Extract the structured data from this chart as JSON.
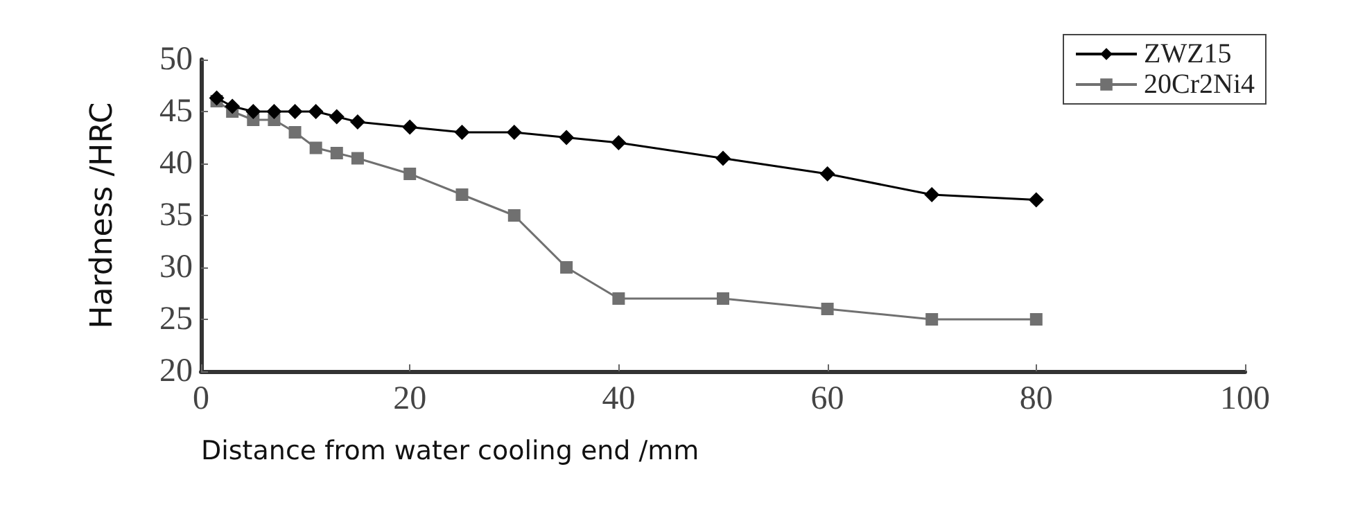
{
  "chart_data": {
    "type": "line",
    "xlabel": "Distance from water cooling end /mm",
    "ylabel": "Hardness /HRC",
    "xlim": [
      0,
      100
    ],
    "xticks": [
      0,
      20,
      40,
      60,
      80,
      100
    ],
    "ylim": [
      20,
      50
    ],
    "yticks": [
      20,
      25,
      30,
      35,
      40,
      45,
      50
    ],
    "grid": false,
    "legend": "top right",
    "series": [
      {
        "name": "ZWZ15",
        "color": "#000000",
        "marker": "diamond",
        "x": [
          1.5,
          3,
          5,
          7,
          9,
          11,
          13,
          15,
          20,
          25,
          30,
          35,
          40,
          50,
          60,
          70,
          80
        ],
        "values": [
          46.3,
          45.5,
          45,
          45,
          45,
          45,
          44.5,
          44,
          43.5,
          43,
          43,
          42.5,
          42,
          40.5,
          39,
          37,
          36.5
        ]
      },
      {
        "name": "20Cr2Ni4",
        "color": "#707070",
        "marker": "square",
        "x": [
          1.5,
          3,
          5,
          7,
          9,
          11,
          13,
          15,
          20,
          25,
          30,
          35,
          40,
          50,
          60,
          70,
          80
        ],
        "values": [
          46,
          45,
          44.2,
          44.2,
          43,
          41.5,
          41,
          40.5,
          39,
          37,
          35,
          30,
          27,
          27,
          26,
          25,
          25
        ]
      }
    ]
  }
}
